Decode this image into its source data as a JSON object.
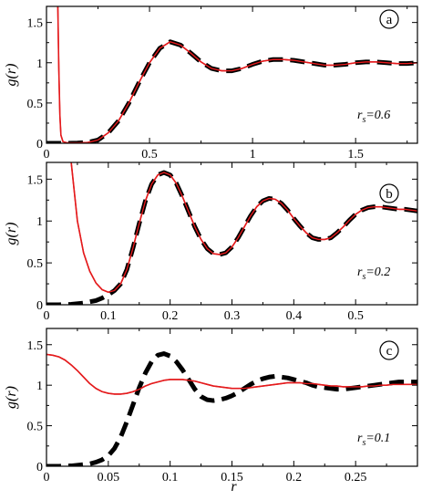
{
  "chart_data": [
    {
      "type": "line",
      "panel_label": "a",
      "ylabel": "g(r)",
      "xlabel": "",
      "xlim": [
        0,
        1.8
      ],
      "ylim": [
        0,
        1.7
      ],
      "xticks": [
        0,
        0.5,
        1,
        1.5
      ],
      "xtick_labels": [
        "0",
        "0.5",
        "1",
        "1.5"
      ],
      "yticks": [
        0,
        0.5,
        1,
        1.5
      ],
      "ytick_labels": [
        "0",
        "0.5",
        "1",
        "1.5"
      ],
      "annotation": {
        "main": "r",
        "sub": "s",
        "value": "=0.6"
      },
      "series": [
        {
          "style": "solid",
          "color": "#e41a1c",
          "x": [
            0.055,
            0.06,
            0.065,
            0.07,
            0.08,
            0.1,
            0.15,
            0.2,
            0.25,
            0.3,
            0.35,
            0.4,
            0.45,
            0.5,
            0.55,
            0.6,
            0.65,
            0.7,
            0.75,
            0.8,
            0.85,
            0.9,
            0.95,
            1.0,
            1.05,
            1.1,
            1.15,
            1.2,
            1.25,
            1.3,
            1.35,
            1.4,
            1.45,
            1.5,
            1.55,
            1.6,
            1.65,
            1.7,
            1.75,
            1.8
          ],
          "y": [
            1.7,
            0.9,
            0.35,
            0.1,
            0.02,
            0.005,
            0.005,
            0.01,
            0.04,
            0.13,
            0.28,
            0.5,
            0.76,
            1.0,
            1.18,
            1.26,
            1.22,
            1.12,
            1.01,
            0.93,
            0.9,
            0.9,
            0.93,
            0.98,
            1.02,
            1.04,
            1.04,
            1.03,
            1.01,
            0.99,
            0.97,
            0.97,
            0.98,
            1.0,
            1.01,
            1.01,
            1.0,
            0.99,
            0.99,
            1.0
          ]
        },
        {
          "style": "dashed",
          "color": "#000000",
          "x": [
            0.0,
            0.05,
            0.1,
            0.15,
            0.2,
            0.25,
            0.3,
            0.35,
            0.4,
            0.45,
            0.5,
            0.55,
            0.6,
            0.65,
            0.7,
            0.75,
            0.8,
            0.85,
            0.9,
            0.95,
            1.0,
            1.05,
            1.1,
            1.15,
            1.2,
            1.25,
            1.3,
            1.35,
            1.4,
            1.45,
            1.5,
            1.55,
            1.6,
            1.65,
            1.7,
            1.75,
            1.8
          ],
          "y": [
            0.0,
            0.0,
            0.0,
            0.003,
            0.01,
            0.04,
            0.13,
            0.28,
            0.5,
            0.76,
            1.0,
            1.18,
            1.26,
            1.22,
            1.12,
            1.01,
            0.93,
            0.9,
            0.9,
            0.93,
            0.98,
            1.02,
            1.04,
            1.04,
            1.03,
            1.01,
            0.99,
            0.97,
            0.97,
            0.98,
            1.0,
            1.01,
            1.01,
            1.0,
            0.99,
            0.99,
            1.0
          ]
        }
      ]
    },
    {
      "type": "line",
      "panel_label": "b",
      "ylabel": "g(r)",
      "xlabel": "",
      "xlim": [
        0,
        0.6
      ],
      "ylim": [
        0,
        1.7
      ],
      "xticks": [
        0,
        0.1,
        0.2,
        0.3,
        0.4,
        0.5
      ],
      "xtick_labels": [
        "0",
        "0.1",
        "0.2",
        "0.3",
        "0.4",
        "0.5"
      ],
      "yticks": [
        0,
        0.5,
        1,
        1.5
      ],
      "ytick_labels": [
        "0",
        "0.5",
        "1",
        "1.5"
      ],
      "annotation": {
        "main": "r",
        "sub": "s",
        "value": "=0.2"
      },
      "series": [
        {
          "style": "solid",
          "color": "#e41a1c",
          "x": [
            0.04,
            0.05,
            0.06,
            0.07,
            0.08,
            0.09,
            0.1,
            0.11,
            0.12,
            0.13,
            0.14,
            0.15,
            0.16,
            0.17,
            0.18,
            0.19,
            0.2,
            0.21,
            0.22,
            0.23,
            0.24,
            0.25,
            0.26,
            0.27,
            0.28,
            0.29,
            0.3,
            0.31,
            0.32,
            0.33,
            0.34,
            0.35,
            0.36,
            0.37,
            0.38,
            0.39,
            0.4,
            0.41,
            0.42,
            0.43,
            0.44,
            0.45,
            0.46,
            0.47,
            0.48,
            0.49,
            0.5,
            0.51,
            0.52,
            0.53,
            0.54,
            0.55,
            0.56,
            0.57,
            0.58,
            0.59,
            0.6
          ],
          "y": [
            1.7,
            1.0,
            0.62,
            0.4,
            0.26,
            0.18,
            0.15,
            0.17,
            0.25,
            0.42,
            0.68,
            0.97,
            1.24,
            1.44,
            1.55,
            1.58,
            1.55,
            1.45,
            1.29,
            1.11,
            0.93,
            0.78,
            0.67,
            0.61,
            0.6,
            0.62,
            0.69,
            0.8,
            0.93,
            1.06,
            1.17,
            1.24,
            1.27,
            1.26,
            1.21,
            1.13,
            1.03,
            0.94,
            0.86,
            0.8,
            0.78,
            0.78,
            0.8,
            0.86,
            0.93,
            1.01,
            1.08,
            1.13,
            1.16,
            1.17,
            1.17,
            1.16,
            1.15,
            1.14,
            1.14,
            1.13,
            1.12
          ]
        },
        {
          "style": "dashed",
          "color": "#000000",
          "x": [
            0.0,
            0.02,
            0.04,
            0.06,
            0.08,
            0.09,
            0.1,
            0.11,
            0.12,
            0.13,
            0.14,
            0.15,
            0.16,
            0.17,
            0.18,
            0.19,
            0.2,
            0.21,
            0.22,
            0.23,
            0.24,
            0.25,
            0.26,
            0.27,
            0.28,
            0.29,
            0.3,
            0.31,
            0.32,
            0.33,
            0.34,
            0.35,
            0.36,
            0.37,
            0.38,
            0.39,
            0.4,
            0.41,
            0.42,
            0.43,
            0.44,
            0.45,
            0.46,
            0.47,
            0.48,
            0.49,
            0.5,
            0.51,
            0.52,
            0.53,
            0.54,
            0.55,
            0.56,
            0.57,
            0.58,
            0.59,
            0.6
          ],
          "y": [
            0.0,
            0.0,
            0.005,
            0.02,
            0.05,
            0.08,
            0.12,
            0.17,
            0.25,
            0.42,
            0.68,
            0.97,
            1.24,
            1.44,
            1.55,
            1.58,
            1.55,
            1.45,
            1.29,
            1.11,
            0.93,
            0.78,
            0.67,
            0.61,
            0.6,
            0.62,
            0.69,
            0.8,
            0.93,
            1.06,
            1.17,
            1.24,
            1.27,
            1.26,
            1.21,
            1.13,
            1.03,
            0.94,
            0.86,
            0.8,
            0.78,
            0.78,
            0.8,
            0.86,
            0.93,
            1.01,
            1.08,
            1.13,
            1.16,
            1.17,
            1.17,
            1.16,
            1.15,
            1.14,
            1.14,
            1.13,
            1.12
          ]
        }
      ]
    },
    {
      "type": "line",
      "panel_label": "c",
      "ylabel": "g(r)",
      "xlabel": "r",
      "xlim": [
        0,
        0.3
      ],
      "ylim": [
        0,
        1.7
      ],
      "xticks": [
        0,
        0.05,
        0.1,
        0.15,
        0.2,
        0.25
      ],
      "xtick_labels": [
        "0",
        "0.05",
        "0.1",
        "0.15",
        "0.2",
        "0.25"
      ],
      "yticks": [
        0,
        0.5,
        1,
        1.5
      ],
      "ytick_labels": [
        "0",
        "0.5",
        "1",
        "1.5"
      ],
      "annotation": {
        "main": "r",
        "sub": "s",
        "value": "=0.1"
      },
      "series": [
        {
          "style": "solid",
          "color": "#e41a1c",
          "x": [
            0.0,
            0.005,
            0.01,
            0.015,
            0.02,
            0.025,
            0.03,
            0.035,
            0.04,
            0.045,
            0.05,
            0.055,
            0.06,
            0.065,
            0.07,
            0.075,
            0.08,
            0.085,
            0.09,
            0.095,
            0.1,
            0.105,
            0.11,
            0.115,
            0.12,
            0.125,
            0.13,
            0.135,
            0.14,
            0.145,
            0.15,
            0.155,
            0.16,
            0.165,
            0.17,
            0.175,
            0.18,
            0.185,
            0.19,
            0.195,
            0.2,
            0.205,
            0.21,
            0.215,
            0.22,
            0.225,
            0.23,
            0.235,
            0.24,
            0.245,
            0.25,
            0.255,
            0.26,
            0.265,
            0.27,
            0.275,
            0.28,
            0.285,
            0.29,
            0.295,
            0.3
          ],
          "y": [
            1.38,
            1.37,
            1.35,
            1.31,
            1.25,
            1.18,
            1.1,
            1.02,
            0.96,
            0.92,
            0.9,
            0.89,
            0.89,
            0.9,
            0.92,
            0.95,
            0.99,
            1.02,
            1.04,
            1.06,
            1.07,
            1.07,
            1.07,
            1.06,
            1.05,
            1.03,
            1.01,
            0.99,
            0.98,
            0.97,
            0.96,
            0.96,
            0.96,
            0.97,
            0.98,
            0.99,
            1.0,
            1.01,
            1.02,
            1.03,
            1.03,
            1.03,
            1.02,
            1.02,
            1.01,
            1.0,
            0.99,
            0.99,
            0.98,
            0.98,
            0.98,
            0.98,
            0.99,
            0.99,
            1.0,
            1.0,
            1.01,
            1.01,
            1.01,
            1.01,
            1.01
          ]
        },
        {
          "style": "dashed",
          "color": "#000000",
          "x": [
            0.0,
            0.01,
            0.02,
            0.03,
            0.035,
            0.04,
            0.045,
            0.05,
            0.055,
            0.06,
            0.065,
            0.07,
            0.075,
            0.08,
            0.085,
            0.09,
            0.095,
            0.1,
            0.105,
            0.11,
            0.115,
            0.12,
            0.125,
            0.13,
            0.135,
            0.14,
            0.145,
            0.15,
            0.155,
            0.16,
            0.165,
            0.17,
            0.175,
            0.18,
            0.185,
            0.19,
            0.195,
            0.2,
            0.205,
            0.21,
            0.215,
            0.22,
            0.225,
            0.23,
            0.235,
            0.24,
            0.245,
            0.25,
            0.255,
            0.26,
            0.265,
            0.27,
            0.275,
            0.28,
            0.285,
            0.29,
            0.295,
            0.3
          ],
          "y": [
            0.0,
            0.0,
            0.005,
            0.02,
            0.03,
            0.05,
            0.08,
            0.13,
            0.22,
            0.36,
            0.55,
            0.76,
            0.97,
            1.15,
            1.29,
            1.37,
            1.39,
            1.36,
            1.29,
            1.19,
            1.07,
            0.95,
            0.86,
            0.82,
            0.81,
            0.82,
            0.84,
            0.87,
            0.91,
            0.96,
            1.01,
            1.05,
            1.08,
            1.1,
            1.11,
            1.1,
            1.09,
            1.07,
            1.05,
            1.03,
            1.0,
            0.98,
            0.97,
            0.96,
            0.95,
            0.95,
            0.96,
            0.97,
            0.98,
            0.99,
            1.0,
            1.01,
            1.02,
            1.03,
            1.04,
            1.04,
            1.04,
            1.04
          ]
        }
      ]
    }
  ]
}
